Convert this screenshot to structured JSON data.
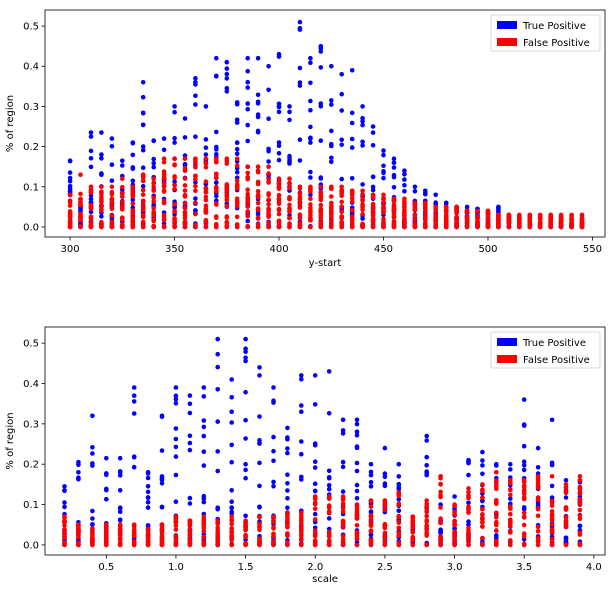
{
  "chart_data": [
    {
      "type": "scatter",
      "xlabel": "y-start",
      "ylabel": "% of region",
      "xlim": [
        288,
        556
      ],
      "ylim": [
        -0.025,
        0.54
      ],
      "xticks": [
        300,
        350,
        400,
        450,
        500,
        550
      ],
      "yticks": [
        0.0,
        0.1,
        0.2,
        0.3,
        0.4,
        0.5
      ],
      "grid": false,
      "legend_position": "top-right",
      "x_positions": [
        300,
        305,
        310,
        315,
        320,
        325,
        330,
        335,
        340,
        345,
        350,
        355,
        360,
        365,
        370,
        375,
        380,
        385,
        390,
        395,
        400,
        405,
        410,
        415,
        420,
        425,
        430,
        435,
        440,
        445,
        450,
        455,
        460,
        465,
        470,
        475,
        480,
        485,
        490,
        495,
        500,
        505,
        510,
        515,
        520,
        525,
        530,
        535,
        540,
        545
      ],
      "series": [
        {
          "name": "True Positive",
          "color": "#0000ff",
          "max_by_x": [
            0.165,
            0.06,
            0.235,
            0.235,
            0.22,
            0.165,
            0.21,
            0.36,
            0.215,
            0.22,
            0.3,
            0.27,
            0.37,
            0.3,
            0.42,
            0.41,
            0.31,
            0.42,
            0.42,
            0.4,
            0.43,
            0.3,
            0.51,
            0.42,
            0.45,
            0.4,
            0.38,
            0.39,
            0.3,
            0.25,
            0.19,
            0.17,
            0.14,
            0.1,
            0.09,
            0.08,
            0.06,
            0.05,
            0.05,
            0.045,
            0.04,
            0.05,
            0.03,
            0.02,
            0.01,
            0.01,
            0.01,
            0.01,
            0.01,
            0.01
          ]
        },
        {
          "name": "False Positive",
          "color": "#ff0000",
          "max_by_x": [
            0.08,
            0.13,
            0.1,
            0.1,
            0.1,
            0.12,
            0.1,
            0.13,
            0.12,
            0.17,
            0.17,
            0.17,
            0.17,
            0.17,
            0.17,
            0.17,
            0.17,
            0.15,
            0.15,
            0.15,
            0.12,
            0.12,
            0.1,
            0.1,
            0.1,
            0.1,
            0.1,
            0.09,
            0.09,
            0.08,
            0.08,
            0.07,
            0.07,
            0.06,
            0.06,
            0.05,
            0.05,
            0.05,
            0.04,
            0.04,
            0.04,
            0.03,
            0.03,
            0.03,
            0.03,
            0.03,
            0.03,
            0.03,
            0.03,
            0.03
          ]
        }
      ]
    },
    {
      "type": "scatter",
      "xlabel": "scale",
      "ylabel": "% of region",
      "xlim": [
        0.06,
        4.08
      ],
      "ylim": [
        -0.025,
        0.54
      ],
      "xticks": [
        0.5,
        1.0,
        1.5,
        2.0,
        2.5,
        3.0,
        3.5,
        4.0
      ],
      "yticks": [
        0.0,
        0.1,
        0.2,
        0.3,
        0.4,
        0.5
      ],
      "grid": false,
      "legend_position": "top-right",
      "x_positions": [
        0.2,
        0.3,
        0.4,
        0.5,
        0.6,
        0.7,
        0.8,
        0.9,
        1.0,
        1.1,
        1.2,
        1.3,
        1.4,
        1.5,
        1.6,
        1.7,
        1.8,
        1.9,
        2.0,
        2.1,
        2.2,
        2.3,
        2.4,
        2.5,
        2.6,
        2.7,
        2.8,
        2.9,
        3.0,
        3.1,
        3.2,
        3.3,
        3.4,
        3.5,
        3.6,
        3.7,
        3.8,
        3.9
      ],
      "series": [
        {
          "name": "True Positive",
          "color": "#0000ff",
          "max_by_x": [
            0.145,
            0.205,
            0.32,
            0.215,
            0.215,
            0.39,
            0.18,
            0.32,
            0.39,
            0.37,
            0.39,
            0.51,
            0.41,
            0.51,
            0.44,
            0.39,
            0.29,
            0.42,
            0.42,
            0.43,
            0.31,
            0.31,
            0.2,
            0.24,
            0.2,
            0.05,
            0.27,
            0.1,
            0.12,
            0.21,
            0.23,
            0.2,
            0.2,
            0.36,
            0.24,
            0.31,
            0.16,
            0.16
          ]
        },
        {
          "name": "False Positive",
          "color": "#ff0000",
          "max_by_x": [
            0.07,
            0.05,
            0.04,
            0.05,
            0.05,
            0.05,
            0.04,
            0.05,
            0.07,
            0.06,
            0.07,
            0.06,
            0.07,
            0.06,
            0.07,
            0.07,
            0.08,
            0.08,
            0.12,
            0.12,
            0.12,
            0.1,
            0.11,
            0.11,
            0.13,
            0.07,
            0.11,
            0.17,
            0.1,
            0.14,
            0.15,
            0.18,
            0.16,
            0.16,
            0.17,
            0.17,
            0.15,
            0.17
          ]
        }
      ]
    }
  ]
}
